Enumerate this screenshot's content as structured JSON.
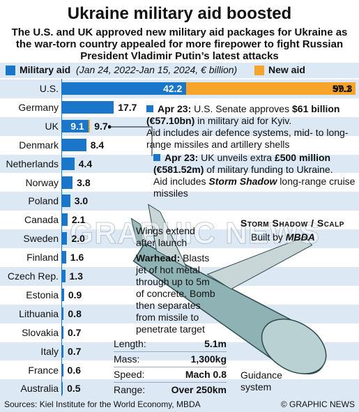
{
  "title": "Ukraine military aid boosted",
  "subtitle": "The U.S. and UK approved new military aid packages for Ukraine as the war-torn country appealed for more firepower to fight Russian President Vladimir Putin’s latest attacks",
  "legend": {
    "military_label": "Military aid",
    "military_detail": "(Jan 24, 2022-Jan 15, 2024, € billion)",
    "new_label": "New aid"
  },
  "colors": {
    "military": "#1976c8",
    "new": "#f7a42a",
    "band": "#dce8f3"
  },
  "chart_data": {
    "type": "bar",
    "orientation": "horizontal",
    "categories": [
      "U.S.",
      "Germany",
      "UK",
      "Denmark",
      "Netherlands",
      "Norway",
      "Poland",
      "Canada",
      "Sweden",
      "Finland",
      "Czech Rep.",
      "Estonia",
      "Lithuania",
      "Slovakia",
      "Italy",
      "France",
      "Australia"
    ],
    "series": [
      {
        "name": "Military aid",
        "values": [
          42.2,
          17.7,
          9.1,
          8.4,
          4.4,
          3.8,
          3.0,
          2.1,
          2.0,
          1.6,
          1.3,
          0.9,
          0.8,
          0.7,
          0.7,
          0.6,
          0.5
        ]
      },
      {
        "name": "New aid",
        "values": [
          57.1,
          null,
          0.6,
          null,
          null,
          null,
          null,
          null,
          null,
          null,
          null,
          null,
          null,
          null,
          null,
          null,
          null
        ]
      }
    ],
    "labels": [
      "99.3",
      "17.7",
      "9.7",
      "8.4",
      "4.4",
      "3.8",
      "3.0",
      "2.1",
      "2.0",
      "1.6",
      "1.3",
      "0.9",
      "0.8",
      "0.7",
      "0.7",
      "0.6",
      "0.5"
    ],
    "inbar_labels": {
      "U.S.": [
        "42.2",
        "57.1"
      ],
      "UK": [
        "9.1"
      ]
    },
    "xlim": [
      0,
      99.3
    ]
  },
  "notes": {
    "us_date": "Apr 23:",
    "us_text_1": "U.S. Senate approves",
    "us_amount": "$61 billion",
    "us_amount_eur": "(€57.10bn)",
    "us_text_2": "in military aid for Kyiv.",
    "us_text_3": "Aid includes air defence systems, mid- to long-range missiles and artillery shells",
    "uk_date": "Apr 23:",
    "uk_text_1": "UK unveils extra",
    "uk_amount": "£500 million",
    "uk_amount_eur": "(€581.52m)",
    "uk_text_2": "of military funding to Ukraine.",
    "uk_text_3": "Aid includes",
    "uk_missile": "Storm Shadow",
    "uk_text_4": "long-range cruise missiles"
  },
  "missile": {
    "name": "Storm Shadow / Scalp",
    "built_by_label": "Built by",
    "built_by": "MBDA",
    "wings_note": "Wings extend after launch",
    "warhead_label": "Warhead:",
    "warhead_text": "Blasts jet of hot metal through up to 5m of concrete. Bomb then separates from missile to penetrate target",
    "guidance_label": "Guidance system",
    "specs": [
      {
        "label": "Length:",
        "value": "5.1m"
      },
      {
        "label": "Mass:",
        "value": "1,300kg"
      },
      {
        "label": "Speed:",
        "value": "Mach 0.8"
      },
      {
        "label": "Range:",
        "value": "Over 250km"
      }
    ]
  },
  "watermark": "GRAPHIC NEWS",
  "footer": {
    "sources": "Sources: Kiel Institute for the World Economy, MBDA",
    "copyright": "© GRAPHIC NEWS"
  }
}
